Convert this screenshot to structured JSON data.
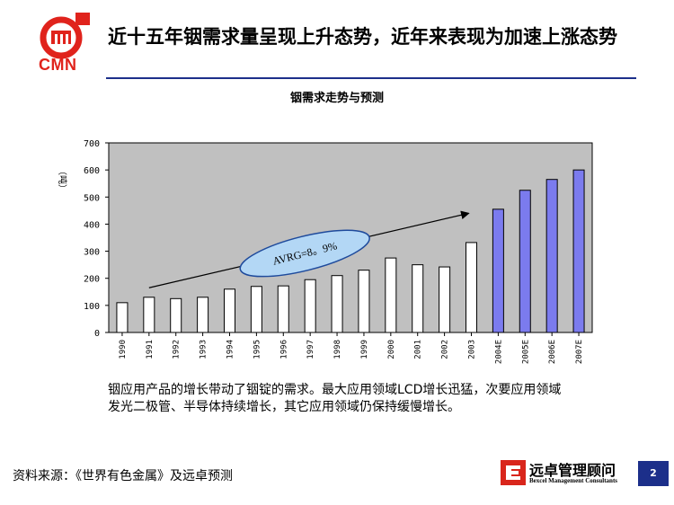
{
  "logo": {
    "text": "CMN"
  },
  "header": {
    "title": "近十五年铟需求量呈现上升态势，近年来表现为加速上涨态势"
  },
  "chart_data": {
    "type": "bar",
    "title": "铟需求走势与预测",
    "ylabel": "（吨）",
    "xlabel": "",
    "ylim": [
      0,
      700
    ],
    "yticks": [
      0,
      100,
      200,
      300,
      400,
      500,
      600,
      700
    ],
    "grid": false,
    "categories": [
      "1990",
      "1991",
      "1992",
      "1993",
      "1994",
      "1995",
      "1996",
      "1997",
      "1998",
      "1999",
      "2000",
      "2001",
      "2002",
      "2003",
      "2004E",
      "2005E",
      "2006E",
      "2007E"
    ],
    "values": [
      110,
      130,
      125,
      130,
      160,
      170,
      172,
      195,
      210,
      230,
      275,
      250,
      242,
      332,
      455,
      525,
      565,
      600
    ],
    "forecast_from_index": 14,
    "colors": {
      "actual": "#ffffff",
      "forecast": "#7b7bee",
      "plot_bg": "#c0c0c0"
    },
    "annotation": {
      "text": "AVRG=8。9%",
      "fill": "#b3d7f5",
      "stroke": "#1e4a9c"
    }
  },
  "note": "铟应用产品的增长带动了铟锭的需求。最大应用领域LCD增长迅猛，次要应用领域发光二极管、半导体持续增长，其它应用领域仍保持缓慢增长。",
  "footer": {
    "source": "资料来源：《世界有色金属》及远卓预测",
    "brand_cn": "远卓管理顾问",
    "brand_en": "Bexcel Management Consultants",
    "page": "2"
  }
}
